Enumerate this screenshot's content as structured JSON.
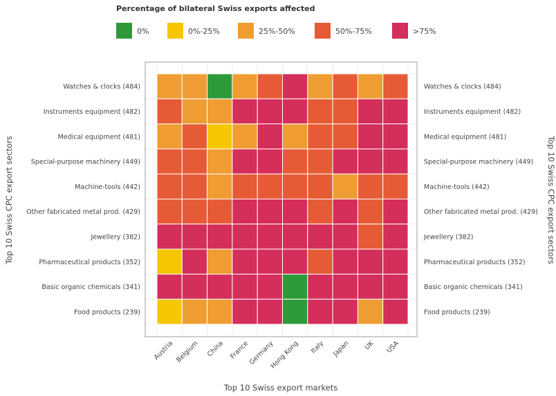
{
  "chart_data": {
    "type": "heatmap",
    "legend": {
      "title": "Percentage of bilateral Swiss exports affected",
      "placement": "top",
      "items": [
        {
          "label": "0%",
          "color": "#2e9a3a"
        },
        {
          "label": "0%-25%",
          "color": "#f7c600"
        },
        {
          "label": "25%-50%",
          "color": "#ef9d33"
        },
        {
          "label": "50%-75%",
          "color": "#e65b36"
        },
        {
          "label": ">75%",
          "color": "#d42e5a"
        }
      ]
    },
    "xlabel": "Top 10 Swiss export markets",
    "ylabel_left": "Top 10 Swiss CPC export sectors",
    "ylabel_right": "Top 10 Swiss CPC export sectors",
    "x": [
      "Austria",
      "Belgium",
      "China",
      "France",
      "Germany",
      "Hong Kong",
      "Italy",
      "Japan",
      "UK",
      "USA"
    ],
    "y": [
      "Watches & clocks (484)",
      "Instruments equipment (482)",
      "Medical equipment (481)",
      "Special-purpose machinery (449)",
      "Machine-tools (442)",
      "Other fabricated metal prod. (429)",
      "Jewellery (382)",
      "Pharmaceutical products (352)",
      "Basic organic chemicals (341)",
      "Food products (239)"
    ],
    "values": [
      [
        2,
        2,
        0,
        2,
        3,
        4,
        2,
        3,
        2,
        3
      ],
      [
        3,
        2,
        2,
        4,
        4,
        4,
        3,
        3,
        4,
        4
      ],
      [
        2,
        3,
        1,
        2,
        4,
        2,
        3,
        3,
        4,
        4
      ],
      [
        3,
        3,
        2,
        4,
        4,
        3,
        3,
        4,
        4,
        4
      ],
      [
        3,
        3,
        2,
        3,
        3,
        3,
        3,
        2,
        3,
        3
      ],
      [
        3,
        3,
        3,
        4,
        4,
        4,
        3,
        4,
        3,
        4
      ],
      [
        4,
        4,
        4,
        4,
        4,
        4,
        4,
        4,
        3,
        4
      ],
      [
        1,
        4,
        2,
        4,
        4,
        4,
        3,
        4,
        4,
        4
      ],
      [
        4,
        4,
        4,
        4,
        4,
        0,
        4,
        4,
        4,
        4
      ],
      [
        1,
        2,
        2,
        4,
        4,
        0,
        4,
        4,
        2,
        4
      ]
    ],
    "grid": true
  }
}
